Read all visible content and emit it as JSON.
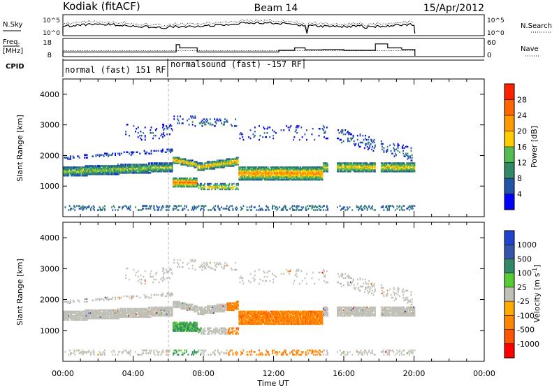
{
  "header": {
    "site": "Kodiak (fitACF)",
    "beam": "Beam 14",
    "date": "15/Apr/2012"
  },
  "nsky_panel": {
    "left_label": "N.Sky",
    "right_label": "N.Search",
    "left_ticks": [
      "10^5",
      "10^0"
    ],
    "right_ticks": [
      "10^5",
      "10^0"
    ]
  },
  "freq_panel": {
    "left_label_1": "Freq.",
    "left_label_2": "[MHz]",
    "right_label": "Nave",
    "left_ticks": [
      "18",
      "8"
    ],
    "right_ticks": [
      "60",
      "0"
    ]
  },
  "cpid_panel": {
    "label": "CPID",
    "mode1": "normal (fast) 151 RF",
    "mode2": "normalsound (fast) -157 RF"
  },
  "colors": {
    "power_scale": [
      "#0000ff",
      "#2255aa",
      "#338866",
      "#55bb55",
      "#ffcc00",
      "#ff9900",
      "#ff6600",
      "#ff2200"
    ],
    "velocity_scale": [
      "#2244cc",
      "#3355aa",
      "#338866",
      "#55cc33",
      "#c0c0b8",
      "#ffaa00",
      "#ff8800",
      "#ff5500",
      "#ff0000"
    ]
  },
  "chart_data": [
    {
      "type": "heatmap",
      "name": "power",
      "ylabel": "Slant Range [km]",
      "xlabel": "",
      "xlim": [
        "00:00",
        "24:00"
      ],
      "ylim": [
        0,
        4500
      ],
      "x_ticks": [
        "00:00",
        "04:00",
        "08:00",
        "12:00",
        "16:00",
        "20:00",
        "00:00"
      ],
      "y_ticks": [
        1000,
        2000,
        3000,
        4000
      ],
      "colorbar": {
        "label": "Power [dB]",
        "ticks": [
          "4",
          "8",
          "12",
          "16",
          "20",
          "24",
          "28"
        ],
        "range": [
          0,
          30
        ]
      }
    },
    {
      "type": "heatmap",
      "name": "velocity",
      "ylabel": "Slant Range [km]",
      "xlabel": "Time UT",
      "xlim": [
        "00:00",
        "24:00"
      ],
      "ylim": [
        0,
        4500
      ],
      "x_ticks": [
        "00:00",
        "04:00",
        "08:00",
        "12:00",
        "16:00",
        "20:00",
        "00:00"
      ],
      "y_ticks": [
        1000,
        2000,
        3000,
        4000
      ],
      "colorbar": {
        "label": "Velocity [m s^-1]",
        "ticks": [
          "1000",
          "500",
          "100",
          "25",
          "-25",
          "-100",
          "-500",
          "-1000"
        ]
      }
    }
  ]
}
